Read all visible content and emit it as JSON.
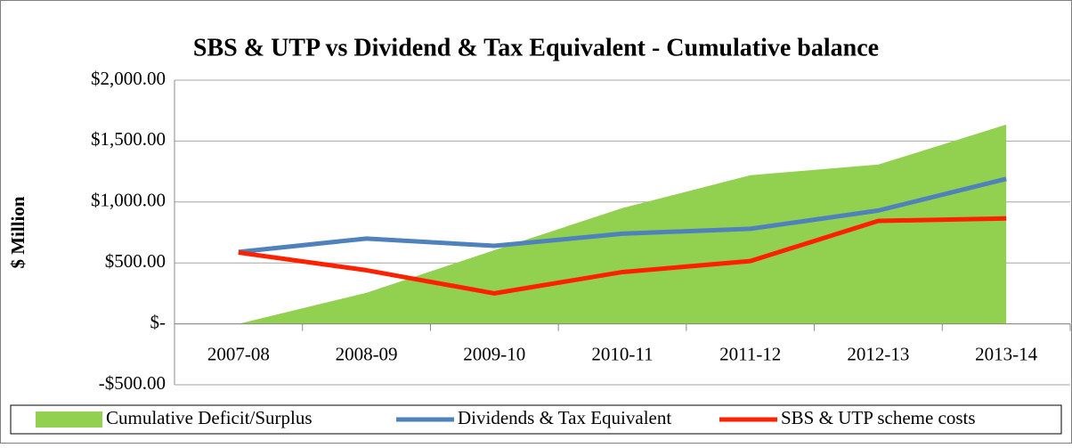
{
  "chart_data": {
    "type": "line",
    "title": "SBS & UTP vs Dividend & Tax Equivalent - Cumulative balance",
    "y_label": "$ Million",
    "categories": [
      "2007-08",
      "2008-09",
      "2009-10",
      "2010-11",
      "2011-12",
      "2012-13",
      "2013-14"
    ],
    "series": [
      {
        "name": "Cumulative Deficit/Surplus",
        "kind": "area",
        "color": "#92d050",
        "values": [
          0,
          255,
          605,
          950,
          1220,
          1307,
          1635
        ]
      },
      {
        "name": "Dividends & Tax Equivalent",
        "kind": "line",
        "color": "#4f81bd",
        "values": [
          590,
          700,
          640,
          740,
          780,
          930,
          1190
        ]
      },
      {
        "name": "SBS & UTP scheme costs",
        "kind": "line",
        "color": "#ff2000",
        "values": [
          585,
          440,
          250,
          425,
          515,
          845,
          865
        ]
      }
    ],
    "ylim": [
      -500,
      2000
    ],
    "yticks": [
      {
        "value": -500,
        "label": "-$500.00"
      },
      {
        "value": 0,
        "label": "$-"
      },
      {
        "value": 500,
        "label": "$500.00"
      },
      {
        "value": 1000,
        "label": "$1,000.00"
      },
      {
        "value": 1500,
        "label": "$1,500.00"
      },
      {
        "value": 2000,
        "label": "$2,000.00"
      }
    ],
    "grid": true,
    "legend": "bottom"
  }
}
